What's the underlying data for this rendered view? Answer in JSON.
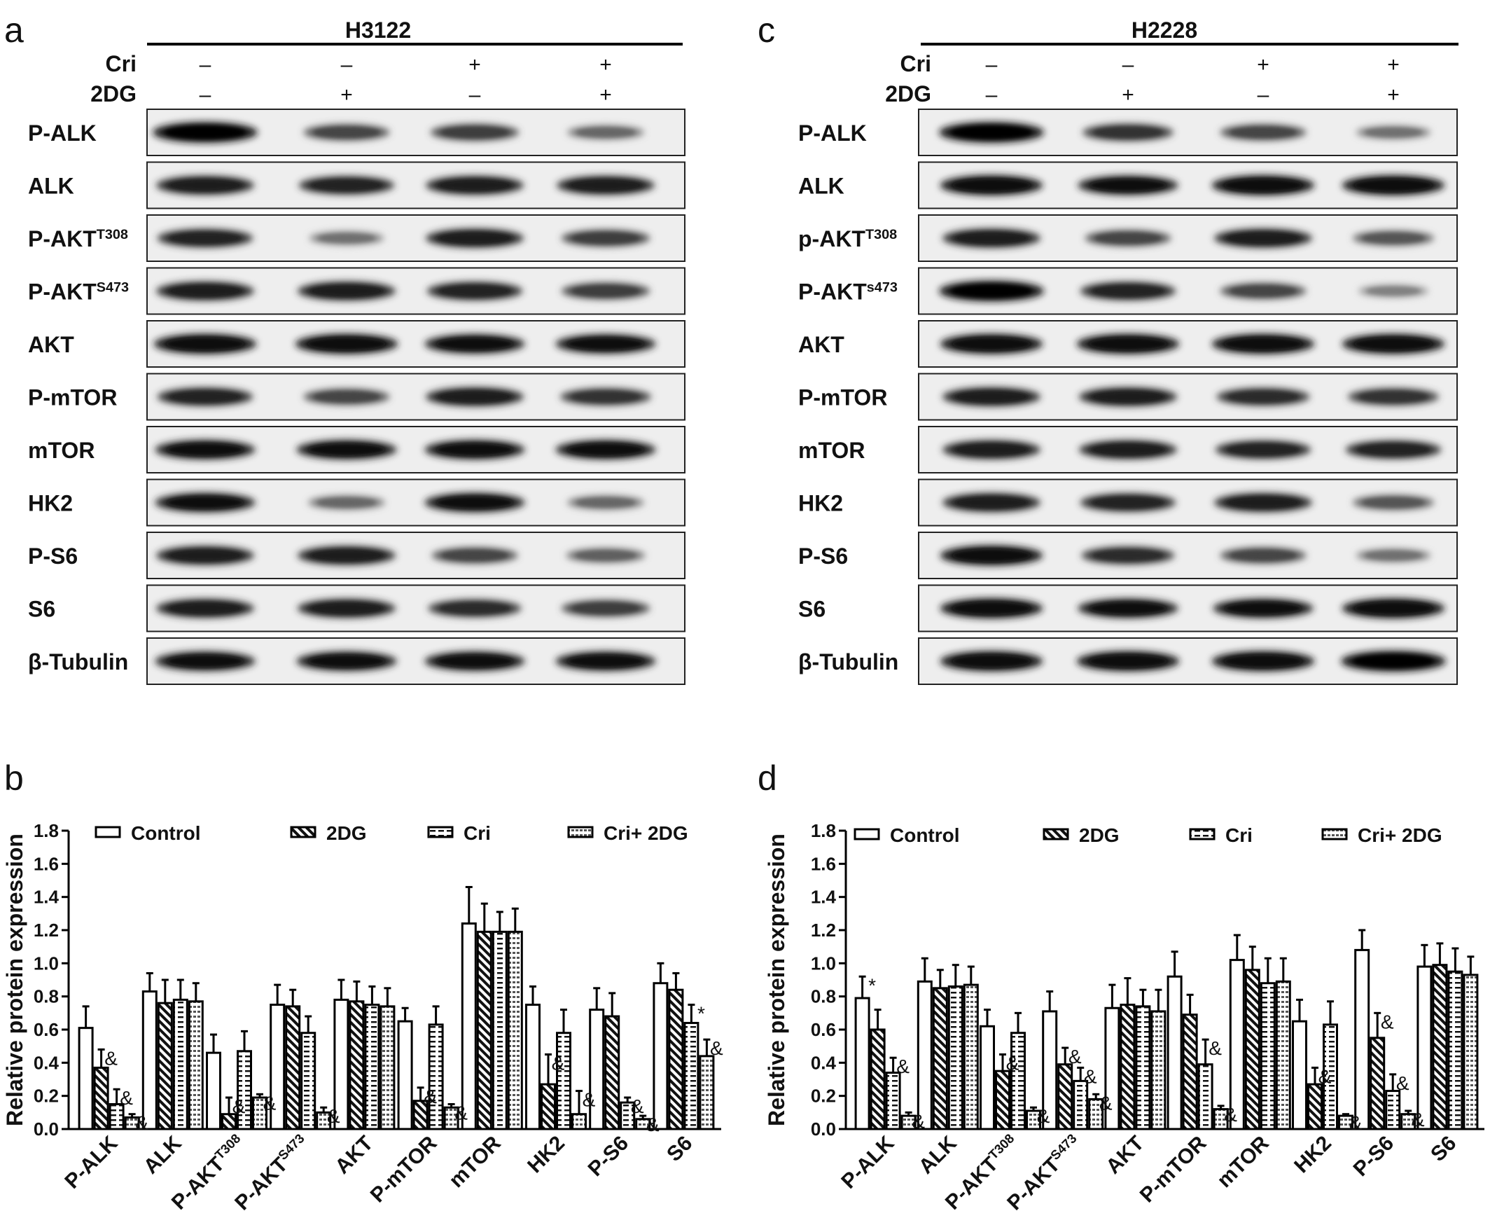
{
  "panels": {
    "a": {
      "letter": "a",
      "cell_line": "H3122"
    },
    "c": {
      "letter": "c",
      "cell_line": "H2228"
    },
    "b": {
      "letter": "b"
    },
    "d": {
      "letter": "d"
    }
  },
  "treatment_rows": [
    {
      "label": "Cri",
      "signs": [
        "–",
        "–",
        "+",
        "+"
      ]
    },
    {
      "label": "2DG",
      "signs": [
        "–",
        "+",
        "–",
        "+"
      ]
    }
  ],
  "blot_rows": {
    "a": [
      {
        "main": "P-ALK",
        "sup": ""
      },
      {
        "main": "ALK",
        "sup": ""
      },
      {
        "main": "P-AKT",
        "sup": "T308"
      },
      {
        "main": "P-AKT",
        "sup": "S473"
      },
      {
        "main": "AKT",
        "sup": ""
      },
      {
        "main": "P-mTOR",
        "sup": ""
      },
      {
        "main": "mTOR",
        "sup": ""
      },
      {
        "main": "HK2",
        "sup": ""
      },
      {
        "main": "P-S6",
        "sup": ""
      },
      {
        "main": "S6",
        "sup": ""
      },
      {
        "main": "β-Tubulin",
        "sup": ""
      }
    ],
    "c": [
      {
        "main": "P-ALK",
        "sup": ""
      },
      {
        "main": "ALK",
        "sup": ""
      },
      {
        "main": "p-AKT",
        "sup": "T308"
      },
      {
        "main": "P-AKT",
        "sup": "s473"
      },
      {
        "main": "AKT",
        "sup": ""
      },
      {
        "main": "P-mTOR",
        "sup": ""
      },
      {
        "main": "mTOR",
        "sup": ""
      },
      {
        "main": "HK2",
        "sup": ""
      },
      {
        "main": "P-S6",
        "sup": ""
      },
      {
        "main": "S6",
        "sup": ""
      },
      {
        "main": "β-Tubulin",
        "sup": ""
      }
    ]
  },
  "band_intensity": {
    "a": [
      [
        1.0,
        0.6,
        0.65,
        0.4
      ],
      [
        0.85,
        0.8,
        0.85,
        0.85
      ],
      [
        0.8,
        0.35,
        0.85,
        0.65
      ],
      [
        0.85,
        0.85,
        0.8,
        0.65
      ],
      [
        0.95,
        0.95,
        0.9,
        0.9
      ],
      [
        0.8,
        0.6,
        0.85,
        0.7
      ],
      [
        0.9,
        0.9,
        0.9,
        0.9
      ],
      [
        0.9,
        0.4,
        0.9,
        0.4
      ],
      [
        0.85,
        0.85,
        0.6,
        0.45
      ],
      [
        0.85,
        0.85,
        0.75,
        0.65
      ],
      [
        0.9,
        0.9,
        0.9,
        0.9
      ]
    ],
    "c": [
      [
        1.0,
        0.7,
        0.6,
        0.35
      ],
      [
        0.95,
        0.9,
        0.95,
        0.95
      ],
      [
        0.85,
        0.6,
        0.85,
        0.5
      ],
      [
        1.0,
        0.8,
        0.6,
        0.25
      ],
      [
        0.95,
        0.95,
        0.95,
        0.95
      ],
      [
        0.85,
        0.85,
        0.75,
        0.7
      ],
      [
        0.85,
        0.85,
        0.8,
        0.8
      ],
      [
        0.85,
        0.8,
        0.85,
        0.5
      ],
      [
        0.95,
        0.75,
        0.6,
        0.35
      ],
      [
        0.95,
        0.9,
        0.9,
        0.95
      ],
      [
        0.95,
        0.95,
        0.95,
        1.0
      ]
    ]
  },
  "legend_labels": [
    "Control",
    "2DG",
    "Cri",
    "Cri+ 2DG"
  ],
  "chart_data": [
    {
      "type": "bar",
      "title": "",
      "xlabel": "",
      "ylabel": "Relative protein expression",
      "ylim": [
        0,
        1.8
      ],
      "yticks": [
        "0.0",
        "0.2",
        "0.4",
        "0.6",
        "0.8",
        "1.0",
        "1.2",
        "1.4",
        "1.6",
        "1.8"
      ],
      "categories": [
        {
          "main": "P-ALK",
          "sup": ""
        },
        {
          "main": "ALK",
          "sup": ""
        },
        {
          "main": "P-AKT",
          "sup": "T308"
        },
        {
          "main": "P-AKT",
          "sup": "S473"
        },
        {
          "main": "AKT",
          "sup": ""
        },
        {
          "main": "P-mTOR",
          "sup": ""
        },
        {
          "main": "mTOR",
          "sup": ""
        },
        {
          "main": "HK2",
          "sup": ""
        },
        {
          "main": "P-S6",
          "sup": ""
        },
        {
          "main": "S6",
          "sup": ""
        }
      ],
      "legend": "top",
      "series": [
        {
          "name": "Control",
          "pattern": "open",
          "values": [
            0.61,
            0.83,
            0.46,
            0.75,
            0.78,
            0.65,
            1.24,
            0.75,
            0.72,
            0.88
          ],
          "errors": [
            0.13,
            0.11,
            0.11,
            0.12,
            0.12,
            0.08,
            0.22,
            0.11,
            0.13,
            0.12
          ]
        },
        {
          "name": "2DG",
          "pattern": "diagonal",
          "values": [
            0.37,
            0.76,
            0.09,
            0.74,
            0.77,
            0.17,
            1.19,
            0.27,
            0.68,
            0.84
          ],
          "errors": [
            0.11,
            0.14,
            0.1,
            0.1,
            0.12,
            0.08,
            0.17,
            0.18,
            0.14,
            0.1
          ]
        },
        {
          "name": "Cri",
          "pattern": "hbars",
          "values": [
            0.15,
            0.78,
            0.47,
            0.58,
            0.75,
            0.63,
            1.19,
            0.58,
            0.16,
            0.64
          ],
          "errors": [
            0.09,
            0.12,
            0.12,
            0.1,
            0.11,
            0.11,
            0.12,
            0.14,
            0.03,
            0.11
          ]
        },
        {
          "name": "Cri+ 2DG",
          "pattern": "dashed",
          "values": [
            0.07,
            0.77,
            0.19,
            0.1,
            0.74,
            0.13,
            1.19,
            0.09,
            0.06,
            0.44
          ],
          "errors": [
            0.02,
            0.11,
            0.02,
            0.03,
            0.11,
            0.02,
            0.14,
            0.14,
            0.02,
            0.1
          ]
        }
      ],
      "annotations": [
        {
          "category": 0,
          "series": 1,
          "text": "&"
        },
        {
          "category": 0,
          "series": 2,
          "text": "&"
        },
        {
          "category": 0,
          "series": 3,
          "text": "&"
        },
        {
          "category": 2,
          "series": 1,
          "text": "&"
        },
        {
          "category": 2,
          "series": 3,
          "text": "&"
        },
        {
          "category": 3,
          "series": 3,
          "text": "&"
        },
        {
          "category": 5,
          "series": 1,
          "text": "&"
        },
        {
          "category": 5,
          "series": 3,
          "text": "&"
        },
        {
          "category": 7,
          "series": 1,
          "text": "&"
        },
        {
          "category": 7,
          "series": 3,
          "text": "&"
        },
        {
          "category": 8,
          "series": 2,
          "text": "&"
        },
        {
          "category": 8,
          "series": 3,
          "text": "&"
        },
        {
          "category": 9,
          "series": 2,
          "text": "*"
        },
        {
          "category": 9,
          "series": 3,
          "text": "&"
        }
      ]
    },
    {
      "type": "bar",
      "title": "",
      "xlabel": "",
      "ylabel": "Relative protein expression",
      "ylim": [
        0,
        1.8
      ],
      "yticks": [
        "0.0",
        "0.2",
        "0.4",
        "0.6",
        "0.8",
        "1.0",
        "1.2",
        "1.4",
        "1.6",
        "1.8"
      ],
      "categories": [
        {
          "main": "P-ALK",
          "sup": ""
        },
        {
          "main": "ALK",
          "sup": ""
        },
        {
          "main": "P-AKT",
          "sup": "T308"
        },
        {
          "main": "P-AKT",
          "sup": "S473"
        },
        {
          "main": "AKT",
          "sup": ""
        },
        {
          "main": "P-mTOR",
          "sup": ""
        },
        {
          "main": "mTOR",
          "sup": ""
        },
        {
          "main": "HK2",
          "sup": ""
        },
        {
          "main": "P-S6",
          "sup": ""
        },
        {
          "main": "S6",
          "sup": ""
        }
      ],
      "legend": "top",
      "series": [
        {
          "name": "Control",
          "pattern": "open",
          "values": [
            0.79,
            0.89,
            0.62,
            0.71,
            0.73,
            0.92,
            1.02,
            0.65,
            1.08,
            0.98
          ],
          "errors": [
            0.13,
            0.14,
            0.1,
            0.12,
            0.14,
            0.15,
            0.15,
            0.13,
            0.12,
            0.13
          ]
        },
        {
          "name": "2DG",
          "pattern": "diagonal",
          "values": [
            0.6,
            0.85,
            0.35,
            0.39,
            0.75,
            0.69,
            0.96,
            0.27,
            0.55,
            0.99
          ],
          "errors": [
            0.12,
            0.11,
            0.1,
            0.1,
            0.16,
            0.12,
            0.14,
            0.1,
            0.15,
            0.13
          ]
        },
        {
          "name": "Cri",
          "pattern": "hbars",
          "values": [
            0.34,
            0.86,
            0.58,
            0.29,
            0.74,
            0.39,
            0.88,
            0.63,
            0.23,
            0.95
          ],
          "errors": [
            0.09,
            0.13,
            0.12,
            0.08,
            0.1,
            0.15,
            0.15,
            0.14,
            0.1,
            0.14
          ]
        },
        {
          "name": "Cri+ 2DG",
          "pattern": "dashed",
          "values": [
            0.08,
            0.87,
            0.11,
            0.18,
            0.71,
            0.12,
            0.89,
            0.08,
            0.09,
            0.93
          ],
          "errors": [
            0.02,
            0.11,
            0.02,
            0.03,
            0.13,
            0.02,
            0.14,
            0.01,
            0.02,
            0.11
          ]
        }
      ],
      "annotations": [
        {
          "category": 0,
          "series": 0,
          "text": "*"
        },
        {
          "category": 0,
          "series": 2,
          "text": "&"
        },
        {
          "category": 0,
          "series": 3,
          "text": "&"
        },
        {
          "category": 2,
          "series": 1,
          "text": "&"
        },
        {
          "category": 2,
          "series": 3,
          "text": "&"
        },
        {
          "category": 3,
          "series": 1,
          "text": "&"
        },
        {
          "category": 3,
          "series": 2,
          "text": "&"
        },
        {
          "category": 3,
          "series": 3,
          "text": "&"
        },
        {
          "category": 5,
          "series": 2,
          "text": "&"
        },
        {
          "category": 5,
          "series": 3,
          "text": "&"
        },
        {
          "category": 7,
          "series": 1,
          "text": "&"
        },
        {
          "category": 7,
          "series": 3,
          "text": "&"
        },
        {
          "category": 8,
          "series": 1,
          "text": "&"
        },
        {
          "category": 8,
          "series": 2,
          "text": "&"
        },
        {
          "category": 8,
          "series": 3,
          "text": "&"
        }
      ]
    }
  ]
}
